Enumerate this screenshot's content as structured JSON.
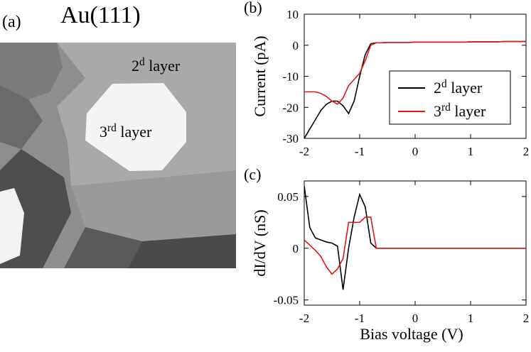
{
  "image_panel": {
    "label": "(a)",
    "title": "Au(111)",
    "labels": [
      {
        "text": "2",
        "sup": "d",
        "after": " layer"
      },
      {
        "text": "3",
        "sup": "rd",
        "after": " layer"
      }
    ]
  },
  "chart_data": [
    {
      "type": "line",
      "panel_label": "(b)",
      "y_label": "Current (pA)",
      "x": [
        -2,
        -1.9,
        -1.8,
        -1.7,
        -1.6,
        -1.5,
        -1.4,
        -1.3,
        -1.2,
        -1.1,
        -1,
        -0.9,
        -0.8,
        -0.7,
        -0.6,
        -0.5,
        -0.4,
        -0.3,
        -0.2,
        -0.1,
        0,
        0.1,
        0.2,
        0.3,
        0.4,
        0.5,
        0.6,
        0.7,
        0.8,
        0.9,
        1,
        1.1,
        1.2,
        1.3,
        1.4,
        1.5,
        1.6,
        1.7,
        1.8,
        1.9,
        2
      ],
      "xlim": [
        -2,
        2
      ],
      "xticks": [
        -2,
        -1,
        0,
        1,
        2
      ],
      "ylim": [
        -30,
        10
      ],
      "yticks": [
        -30,
        -20,
        -10,
        0,
        10
      ],
      "legend": "right",
      "series": [
        {
          "name": {
            "text": "2",
            "sup": "d",
            "after": " layer"
          },
          "color": "#000000",
          "values": [
            -30,
            -27,
            -24,
            -21,
            -19,
            -18,
            -18,
            -19.5,
            -22,
            -18,
            -10,
            -3,
            0.5,
            0.8,
            0.8,
            0.9,
            0.9,
            0.9,
            0.9,
            0.9,
            1,
            1,
            1,
            1,
            1,
            1,
            1,
            1,
            1,
            1,
            1.1,
            1.1,
            1.1,
            1.1,
            1.1,
            1.1,
            1.2,
            1.2,
            1.2,
            1.2,
            1.2
          ]
        },
        {
          "name": {
            "text": "3",
            "sup": "rd",
            "after": " layer"
          },
          "color": "#e8141c",
          "values": [
            -15,
            -15,
            -15,
            -15.5,
            -16.5,
            -18,
            -19,
            -17,
            -13,
            -11,
            -9,
            -5,
            0,
            0.8,
            0.8,
            0.9,
            0.9,
            0.9,
            0.9,
            0.9,
            1,
            1,
            1,
            1,
            1,
            1,
            1,
            1,
            1,
            1,
            1.1,
            1.1,
            1.1,
            1.1,
            1.1,
            1.1,
            1.2,
            1.2,
            1.2,
            1.2,
            1.2
          ]
        }
      ]
    },
    {
      "type": "line",
      "panel_label": "(c)",
      "y_label": "dI/dV (nS)",
      "x_label": "Bias voltage (V)",
      "x": [
        -2,
        -1.9,
        -1.8,
        -1.7,
        -1.6,
        -1.5,
        -1.4,
        -1.3,
        -1.2,
        -1.1,
        -1,
        -0.9,
        -0.8,
        -0.7,
        -0.6,
        -0.5,
        -0.4,
        -0.3,
        -0.2,
        -0.1,
        0,
        0.1,
        0.2,
        0.3,
        0.4,
        0.5,
        0.6,
        0.7,
        0.8,
        0.9,
        1,
        1.1,
        1.2,
        1.3,
        1.4,
        1.5,
        1.6,
        1.7,
        1.8,
        1.9,
        2
      ],
      "xlim": [
        -2,
        2
      ],
      "xticks": [
        -2,
        -1,
        0,
        1,
        2
      ],
      "ylim": [
        -0.055,
        0.065
      ],
      "yticks": [
        -0.05,
        0,
        0.05
      ],
      "series": [
        {
          "color": "#000000",
          "values": [
            0.06,
            0.02,
            0.01,
            0.008,
            0.006,
            0.005,
            0.002,
            -0.04,
            0,
            0.03,
            0.052,
            0.04,
            0.005,
            0,
            0,
            0,
            0,
            0,
            0,
            0,
            0,
            0,
            0,
            0,
            0,
            0,
            0,
            0,
            0,
            0,
            0,
            0,
            0,
            0,
            0,
            0,
            0,
            0,
            0,
            0,
            0
          ]
        },
        {
          "color": "#e8141c",
          "values": [
            0.008,
            0.003,
            -0.002,
            -0.008,
            -0.018,
            -0.025,
            -0.02,
            -0.01,
            0.025,
            0.025,
            0.025,
            0.03,
            0.03,
            0,
            0,
            0,
            0,
            0,
            0,
            0,
            0,
            0,
            0,
            0,
            0,
            0,
            0,
            0,
            0,
            0,
            0,
            0,
            0,
            0,
            0,
            0,
            0,
            0,
            0,
            0,
            0
          ]
        }
      ]
    }
  ]
}
